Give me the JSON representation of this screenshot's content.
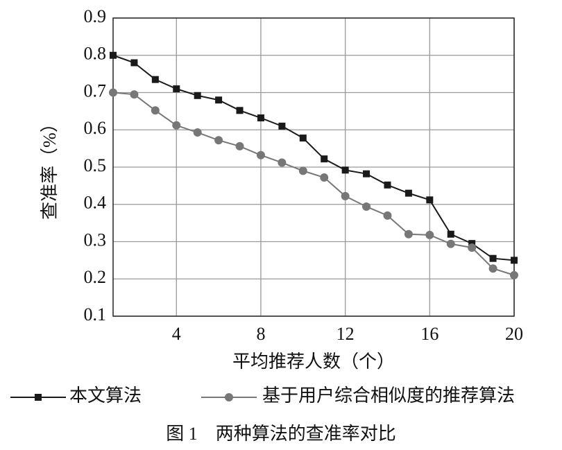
{
  "chart_data": {
    "type": "line",
    "caption": "图 1　两种算法的查准率对比",
    "xlabel": "平均推荐人数（个）",
    "ylabel": "查准率（%）",
    "x": [
      1,
      2,
      3,
      4,
      5,
      6,
      7,
      8,
      9,
      10,
      11,
      12,
      13,
      14,
      15,
      16,
      17,
      18,
      19,
      20
    ],
    "series": [
      {
        "name": "本文算法",
        "color": "#1a1a1a",
        "marker": "square",
        "values": [
          0.8,
          0.78,
          0.735,
          0.71,
          0.692,
          0.68,
          0.652,
          0.632,
          0.61,
          0.578,
          0.522,
          0.492,
          0.482,
          0.452,
          0.43,
          0.412,
          0.32,
          0.295,
          0.255,
          0.25
        ]
      },
      {
        "name": "基于用户综合相似度的推荐算法",
        "color": "#777777",
        "marker": "circle",
        "values": [
          0.7,
          0.695,
          0.652,
          0.612,
          0.593,
          0.572,
          0.556,
          0.532,
          0.512,
          0.49,
          0.472,
          0.422,
          0.394,
          0.37,
          0.32,
          0.318,
          0.294,
          0.284,
          0.228,
          0.21
        ]
      }
    ],
    "xlim": [
      1,
      20
    ],
    "xticks": [
      4,
      8,
      12,
      16,
      20
    ],
    "ylim": [
      0.1,
      0.9
    ],
    "yticks": [
      0.1,
      0.2,
      0.3,
      0.4,
      0.5,
      0.6,
      0.7,
      0.8,
      0.9
    ],
    "grid": true
  }
}
